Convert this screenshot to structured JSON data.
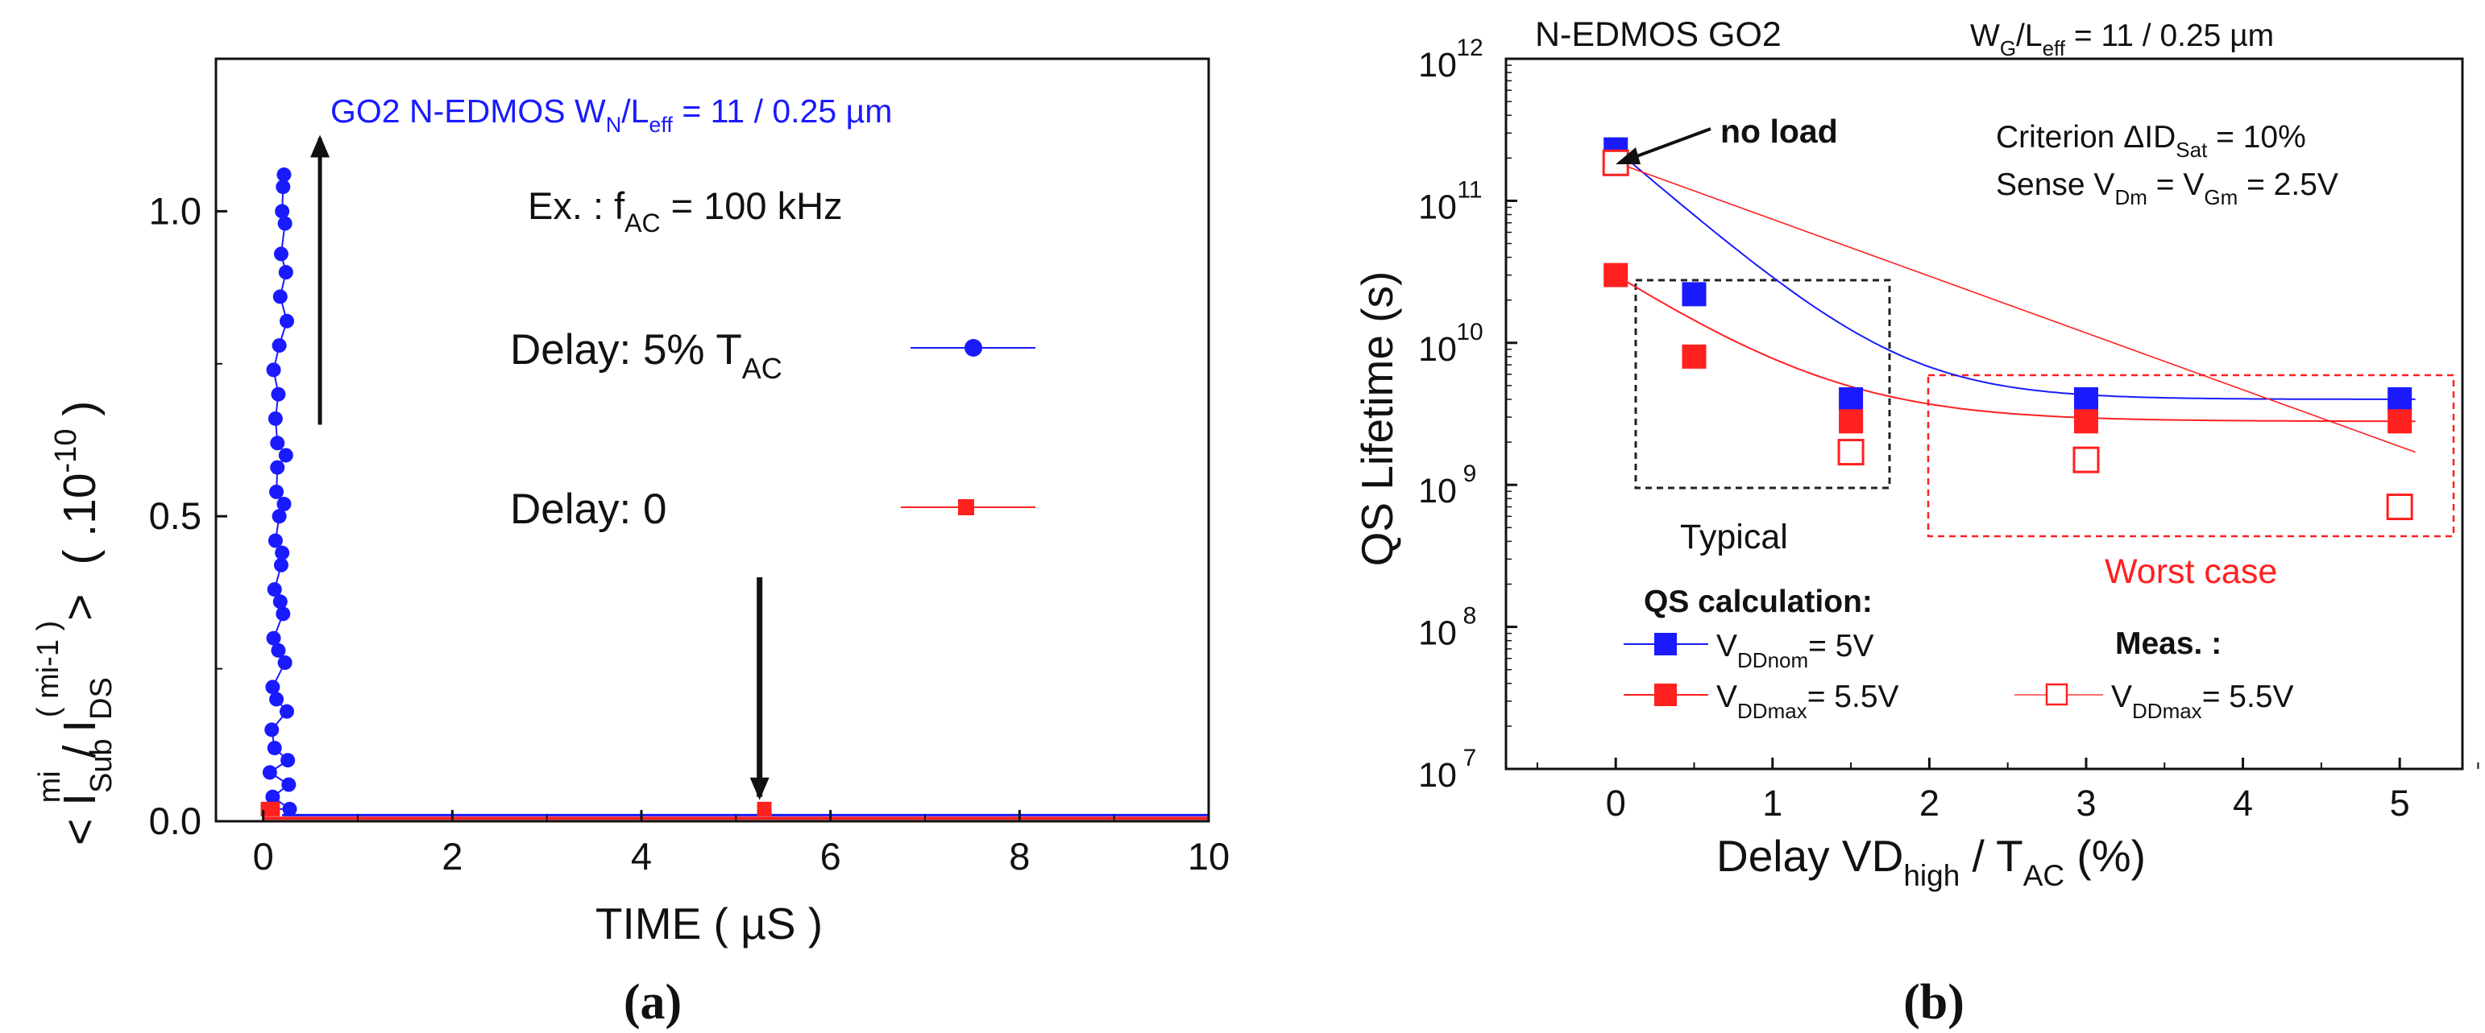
{
  "colors": {
    "blue": "#1a1aff",
    "red": "#ff2020",
    "black": "#111111",
    "box_black": "#333333"
  },
  "panels": {
    "a_caption": "(a)",
    "b_caption": "(b)"
  },
  "chart_data": [
    {
      "id": "a",
      "type": "scatter",
      "title": "GO2 N-EDMOS W",
      "title_sub": "N",
      "title_mid": "/L",
      "title_sub2": "eff",
      "title_tail": " = 11 / 0.25 µm",
      "annotation": {
        "prefix": "Ex. : f",
        "sub": "AC",
        "suffix": " = 100 kHz"
      },
      "xlabel": "TIME ( µS )",
      "ylabel": {
        "main": "< I",
        "sup1": "mi",
        "sub1": "Sub",
        "mid": " / I",
        "sup2": "( mi-1 )",
        "sub2": "DS",
        "end": ">",
        "scale": "( .10",
        "scale_exp": "-10",
        "scale_end": " )"
      },
      "xlim": [
        -0.5,
        10
      ],
      "ylim": [
        0,
        1.25
      ],
      "xticks": [
        "0",
        "2",
        "4",
        "6",
        "8",
        "10"
      ],
      "xtick_values": [
        0,
        2,
        4,
        6,
        8,
        10
      ],
      "yticks": [
        "0.0",
        "0.5",
        "1.0"
      ],
      "ytick_values": [
        0,
        0.5,
        1.0
      ],
      "grid": false,
      "legend": [
        {
          "label": "Delay: 5% T",
          "label_sub": "AC",
          "color": "#1a1aff",
          "marker": "circle"
        },
        {
          "label": "Delay: 0",
          "label_sub": "",
          "color": "#ff2020",
          "marker": "square"
        }
      ],
      "series": [
        {
          "name": "Delay: 5% TAC",
          "color": "#1a1aff",
          "marker": "circle",
          "x": [
            0.05,
            0.07,
            0.09,
            0.1,
            0.11,
            0.12,
            0.13,
            0.14,
            0.15,
            0.16,
            0.17,
            0.18,
            0.19,
            0.2,
            0.21,
            0.22,
            0.23,
            0.24,
            0.25,
            0.1,
            0.12,
            0.14,
            0.16,
            0.18,
            0.2,
            0.22,
            0.24,
            0.11,
            0.13,
            0.15,
            0.17,
            0.19,
            0.21,
            0.23,
            0.25,
            0.26,
            0.27,
            0.28
          ],
          "y": [
            0.02,
            0.08,
            0.15,
            0.22,
            0.3,
            0.38,
            0.46,
            0.54,
            0.62,
            0.7,
            0.78,
            0.86,
            0.93,
            1.0,
            1.04,
            1.06,
            0.98,
            0.9,
            0.82,
            0.04,
            0.12,
            0.2,
            0.28,
            0.36,
            0.44,
            0.52,
            0.6,
            0.74,
            0.66,
            0.58,
            0.5,
            0.42,
            0.34,
            0.26,
            0.18,
            0.1,
            0.06,
            0.02
          ],
          "baseline": 0.01
        },
        {
          "name": "Delay: 0",
          "color": "#ff2020",
          "marker": "square",
          "x": [
            0.05,
            0.1,
            5.3
          ],
          "y": [
            0.02,
            0.02,
            0.02
          ],
          "baseline": 0.005
        }
      ],
      "arrows": [
        {
          "x": 0.6,
          "y0": 0.65,
          "y1": 1.12,
          "dir": "up"
        },
        {
          "x": 5.25,
          "y0": 0.4,
          "y1": 0.04,
          "dir": "down"
        }
      ]
    },
    {
      "id": "b",
      "type": "line",
      "title": "N-EDMOS GO2",
      "title_right": {
        "prefix": "W",
        "sub1": "G",
        "mid": "/L",
        "sub2": "eff",
        "suffix": " = 11 / 0.25 µm"
      },
      "xlabel": {
        "prefix": "Delay VD",
        "sub": "high",
        "mid": " / T",
        "sub2": "AC",
        "suffix": "   (%)"
      },
      "ylabel": "QS Lifetime (s)",
      "xlim": [
        -0.7,
        5.4
      ],
      "ylim_log10": [
        7,
        12
      ],
      "xticks": [
        "0",
        "1",
        "2",
        "3",
        "4",
        "5"
      ],
      "xtick_values": [
        0,
        1,
        2,
        3,
        4,
        5
      ],
      "yticks_exp": [
        "7",
        "8",
        "9",
        "10",
        "11",
        "12"
      ],
      "ytick_base": "10",
      "log_scale_y": true,
      "grid": false,
      "annotations": {
        "no_load": "no load",
        "criterion": {
          "prefix": "Criterion ΔID",
          "sub": "Sat",
          "suffix": " = 10%"
        },
        "sense": {
          "prefix": "Sense V",
          "sub1": "Dm",
          "mid": " = V",
          "sub2": "Gm",
          "suffix": " = 2.5V"
        },
        "typical": "Typical",
        "worst_case": "Worst case",
        "qs_calc": "QS calculation:",
        "meas": "Meas. :"
      },
      "legend": [
        {
          "prefix": "V",
          "sub": "DDnom",
          "suffix": "= 5V",
          "color": "#1a1aff",
          "marker": "filled-square"
        },
        {
          "prefix": "V",
          "sub": "DDmax",
          "suffix": "= 5.5V",
          "color": "#ff2020",
          "marker": "filled-square"
        },
        {
          "prefix": "V",
          "sub": "DDmax",
          "suffix": "= 5.5V",
          "color": "#ff2020",
          "marker": "open-square"
        }
      ],
      "series": [
        {
          "name": "QS calculation VDDnom = 5V",
          "color": "#1a1aff",
          "marker": "filled-square",
          "x": [
            0,
            0.5,
            1.5,
            3,
            5
          ],
          "y": [
            230000000000.0,
            22000000000.0,
            4000000000.0,
            4000000000.0,
            4000000000.0
          ],
          "fit": {
            "a": 4000000000.0,
            "b": 226000000000.0,
            "k": 2.2,
            "x_end": 5.1
          }
        },
        {
          "name": "QS calculation VDDmax = 5.5V",
          "color": "#ff2020",
          "marker": "filled-square",
          "x": [
            0,
            0.5,
            1.5,
            3,
            5
          ],
          "y": [
            30000000000.0,
            8000000000.0,
            2800000000.0,
            2800000000.0,
            2800000000.0
          ],
          "fit": {
            "a": 2800000000.0,
            "b": 27200000000.0,
            "k": 1.7,
            "x_end": 5.1
          }
        },
        {
          "name": "Meas. VDDmax = 5.5V",
          "color": "#ff2020",
          "marker": "open-square",
          "x": [
            0,
            1.5,
            3,
            5
          ],
          "y": [
            185000000000.0,
            1700000000.0,
            1500000000.0,
            700000000.0
          ],
          "fit": {
            "log_a": 11.27,
            "log_slope": -0.4,
            "x_end": 5.1
          }
        }
      ]
    }
  ]
}
